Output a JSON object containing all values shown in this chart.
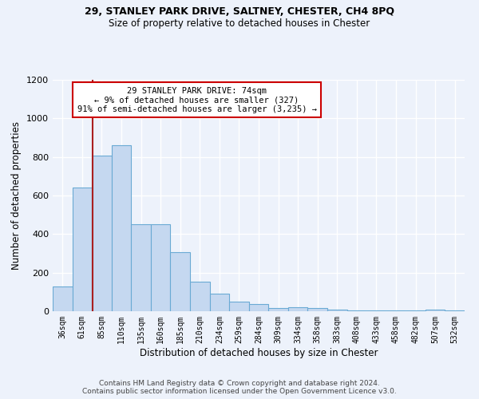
{
  "title1": "29, STANLEY PARK DRIVE, SALTNEY, CHESTER, CH4 8PQ",
  "title2": "Size of property relative to detached houses in Chester",
  "xlabel": "Distribution of detached houses by size in Chester",
  "ylabel": "Number of detached properties",
  "annotation_line1": "29 STANLEY PARK DRIVE: 74sqm",
  "annotation_line2": "← 9% of detached houses are smaller (327)",
  "annotation_line3": "91% of semi-detached houses are larger (3,235) →",
  "footer1": "Contains HM Land Registry data © Crown copyright and database right 2024.",
  "footer2": "Contains public sector information licensed under the Open Government Licence v3.0.",
  "bar_color": "#c5d8f0",
  "bar_edge_color": "#6aaad4",
  "vline_color": "#aa2020",
  "annotation_box_edge": "#cc0000",
  "categories": [
    "36sqm",
    "61sqm",
    "85sqm",
    "110sqm",
    "135sqm",
    "160sqm",
    "185sqm",
    "210sqm",
    "234sqm",
    "259sqm",
    "284sqm",
    "309sqm",
    "334sqm",
    "358sqm",
    "383sqm",
    "408sqm",
    "433sqm",
    "458sqm",
    "482sqm",
    "507sqm",
    "532sqm"
  ],
  "values": [
    130,
    640,
    805,
    860,
    450,
    450,
    305,
    155,
    90,
    50,
    38,
    15,
    20,
    15,
    8,
    5,
    3,
    3,
    3,
    10,
    3
  ],
  "ylim": [
    0,
    1200
  ],
  "yticks": [
    0,
    200,
    400,
    600,
    800,
    1000,
    1200
  ],
  "vline_x": 1.52,
  "bg_color": "#edf2fb",
  "grid_color": "#ffffff"
}
